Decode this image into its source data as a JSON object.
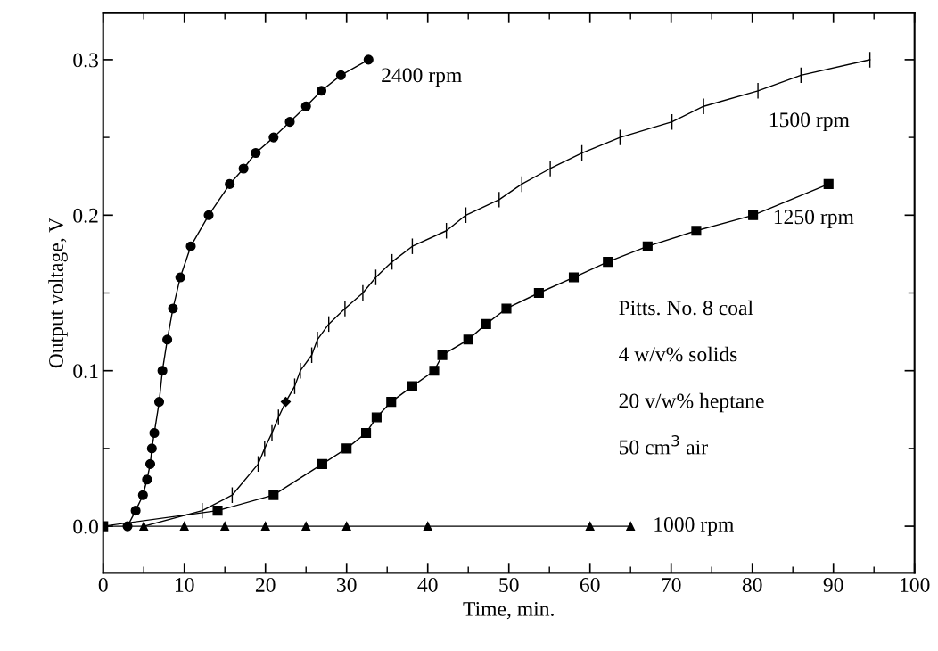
{
  "chart_data": {
    "type": "line",
    "xlabel": "Time, min.",
    "ylabel": "Output voltage, V",
    "xlim": [
      0,
      100
    ],
    "ylim": [
      -0.03,
      0.33
    ],
    "xticks": [
      0,
      10,
      20,
      30,
      40,
      50,
      60,
      70,
      80,
      90,
      100
    ],
    "yticks": [
      {
        "value": 0,
        "label": "0.0"
      },
      0.1,
      0.2,
      0.3
    ],
    "grid": false,
    "annotations": [
      "Pitts. No. 8 coal",
      "4 w/v% solids",
      "20 v/w% heptane",
      "50 cm$^{3}$ air"
    ],
    "series": [
      {
        "name": "2400 rpm",
        "color": "#000000",
        "marker": "circle",
        "x": [
          3.0,
          4.0,
          4.9,
          5.4,
          5.8,
          6.0,
          6.3,
          6.9,
          7.3,
          7.9,
          8.6,
          9.5,
          10.8,
          13.0,
          15.6,
          17.3,
          18.8,
          21.0,
          23.0,
          25.0,
          26.9,
          29.3,
          32.7
        ],
        "values": [
          0,
          0.01,
          0.02,
          0.03,
          0.04,
          0.05,
          0.06,
          0.08,
          0.1,
          0.12,
          0.14,
          0.16,
          0.18,
          0.2,
          0.22,
          0.23,
          0.24,
          0.25,
          0.26,
          0.27,
          0.28,
          0.29,
          0.3
        ]
      },
      {
        "name": "1500 rpm",
        "color": "#000000",
        "marker": "none",
        "errors": [
          null,
          0.005,
          0.005,
          0.005,
          0.005,
          0.005,
          0.005,
          null,
          0.005,
          0.005,
          0.005,
          0.005,
          0.005,
          0.005,
          0.005,
          0.005,
          0.005,
          0.005,
          0.005,
          0.005,
          0.005,
          0.005,
          0.005,
          0.005,
          0.005,
          0.005,
          0.005,
          0.005,
          0.005,
          0.005
        ],
        "x": [
          5.0,
          12.2,
          15.9,
          19.1,
          19.9,
          20.8,
          21.6,
          22.5,
          23.6,
          24.3,
          25.7,
          26.4,
          27.8,
          29.8,
          32.0,
          33.6,
          35.6,
          38.1,
          42.3,
          44.7,
          48.8,
          51.6,
          55.1,
          59.0,
          63.7,
          70.1,
          74.0,
          80.7,
          86.0,
          94.5
        ],
        "values": [
          0,
          0.01,
          0.02,
          0.04,
          0.05,
          0.06,
          0.07,
          0.08,
          0.09,
          0.1,
          0.11,
          0.12,
          0.13,
          0.14,
          0.15,
          0.16,
          0.17,
          0.18,
          0.19,
          0.2,
          0.21,
          0.22,
          0.23,
          0.24,
          0.25,
          0.26,
          0.27,
          0.28,
          0.29,
          0.3
        ]
      },
      {
        "name": "1250 rpm",
        "color": "#000000",
        "marker": "square",
        "x": [
          0,
          14.1,
          21.0,
          27.0,
          30.0,
          32.4,
          33.7,
          35.5,
          38.1,
          40.8,
          41.8,
          45.0,
          47.2,
          49.7,
          53.7,
          58.0,
          62.2,
          67.1,
          73.1,
          80.1,
          89.4
        ],
        "values": [
          0,
          0.01,
          0.02,
          0.04,
          0.05,
          0.06,
          0.07,
          0.08,
          0.09,
          0.1,
          0.11,
          0.12,
          0.13,
          0.14,
          0.15,
          0.16,
          0.17,
          0.18,
          0.19,
          0.2,
          0.22
        ]
      },
      {
        "name": "1000 rpm",
        "color": "#000000",
        "marker": "triangle",
        "x": [
          0,
          5,
          10,
          15,
          20,
          25,
          30,
          40,
          60,
          65
        ],
        "values": [
          0,
          0,
          0,
          0,
          0,
          0,
          0,
          0,
          0,
          0
        ]
      },
      {
        "type": "scatter",
        "color": "#000000",
        "marker": "diamond",
        "x": [
          22.5
        ],
        "values": [
          0.08
        ]
      }
    ]
  }
}
